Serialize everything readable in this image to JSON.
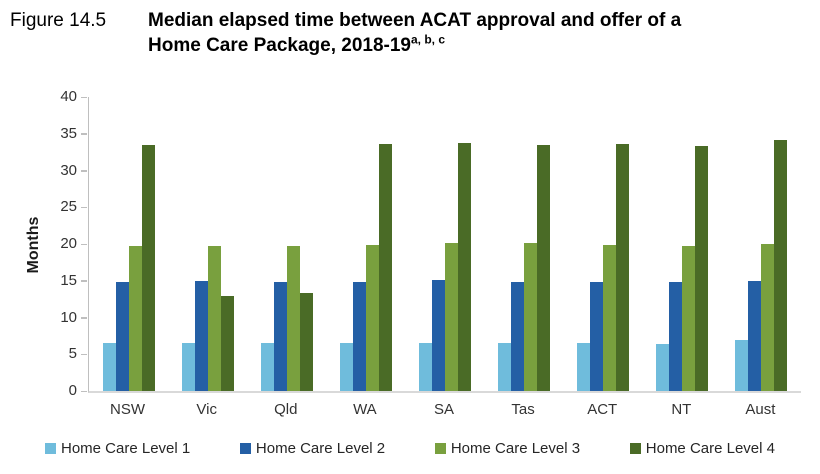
{
  "header": {
    "figure_label": "Figure 14.5",
    "title_line1": "Median elapsed time between ACAT approval and offer of a",
    "title_line2": "Home Care Package, 2018-19",
    "title_superscript": "a, b, c"
  },
  "chart_data": {
    "type": "bar",
    "title": "Median elapsed time between ACAT approval and offer of a Home Care Package, 2018-19",
    "categories": [
      "NSW",
      "Vic",
      "Qld",
      "WA",
      "SA",
      "Tas",
      "ACT",
      "NT",
      "Aust"
    ],
    "series": [
      {
        "name": "Home Care Level 1",
        "color": "#6fbcdc",
        "values": [
          6.5,
          6.5,
          6.5,
          6.5,
          6.6,
          6.6,
          6.6,
          6.4,
          7.0
        ]
      },
      {
        "name": "Home Care Level 2",
        "color": "#245fa5",
        "values": [
          14.9,
          15.0,
          14.8,
          14.8,
          15.1,
          14.9,
          14.9,
          14.8,
          15.0
        ]
      },
      {
        "name": "Home Care Level 3",
        "color": "#79a03e",
        "values": [
          19.8,
          19.8,
          19.7,
          19.9,
          20.1,
          20.1,
          19.9,
          19.8,
          20.0
        ]
      },
      {
        "name": "Home Care Level 4",
        "color": "#4a6b26",
        "values": [
          33.5,
          13.0,
          13.3,
          33.6,
          33.7,
          33.5,
          33.6,
          33.4,
          34.1
        ]
      }
    ],
    "xlabel": "",
    "ylabel": "Months",
    "ylim": [
      0,
      40
    ],
    "ytick_step": 5,
    "grid": false,
    "legend_position": "bottom",
    "axis_color": "#bfbfbf"
  }
}
